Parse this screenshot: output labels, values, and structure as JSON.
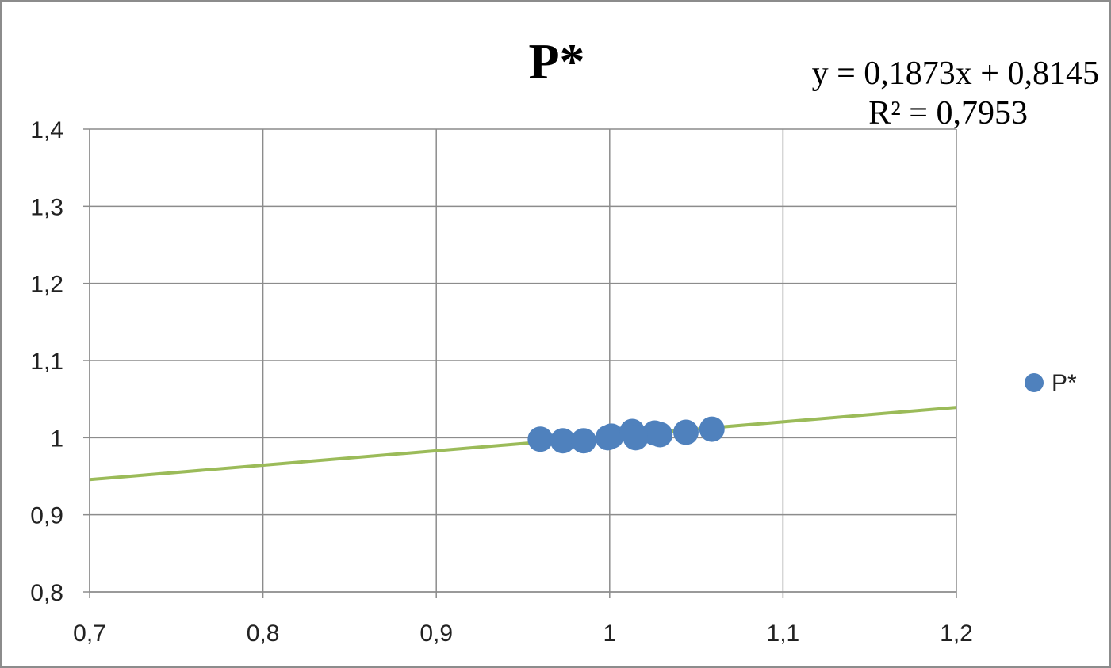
{
  "chart_data": {
    "type": "scatter",
    "title": "P*",
    "xlabel": "",
    "ylabel": "",
    "xlim": [
      0.7,
      1.2
    ],
    "ylim": [
      0.8,
      1.4
    ],
    "x_ticks": [
      "0,7",
      "0,8",
      "0,9",
      "1",
      "1,1",
      "1,2"
    ],
    "y_ticks": [
      "0,8",
      "0,9",
      "1",
      "1,1",
      "1,2",
      "1,3",
      "1,4"
    ],
    "grid": true,
    "legend_position": "right",
    "series": [
      {
        "name": "P*",
        "color": "#4F81BD",
        "points": [
          [
            0.96,
            0.998
          ],
          [
            0.973,
            0.996
          ],
          [
            0.985,
            0.996
          ],
          [
            0.999,
            1.0
          ],
          [
            1.001,
            1.002
          ],
          [
            1.013,
            1.008
          ],
          [
            1.015,
            1.0
          ],
          [
            1.026,
            1.006
          ],
          [
            1.029,
            1.004
          ],
          [
            1.044,
            1.007
          ],
          [
            1.059,
            1.011
          ]
        ]
      }
    ],
    "trendline": {
      "color": "#9BBB59",
      "slope": 0.1873,
      "intercept": 0.8145,
      "equation_text": "y = 0,1873x  + 0,8145",
      "r2_text": "R² = 0,7953"
    }
  }
}
